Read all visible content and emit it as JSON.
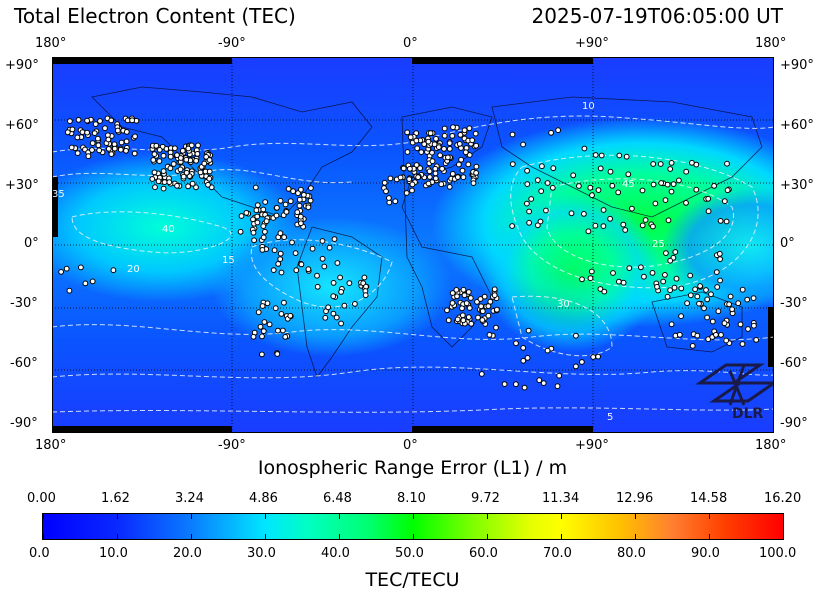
{
  "header": {
    "title_left": "Total Electron Content (TEC)",
    "title_right": "2025-07-19T06:05:00 UT"
  },
  "map": {
    "lon_ticks": [
      "180°",
      "-90°",
      "0°",
      "+90°",
      "180°"
    ],
    "lat_ticks": [
      "+90°",
      "+60°",
      "+30°",
      "0°",
      "-30°",
      "-60°",
      "-90°"
    ],
    "contour_labels": [
      "5",
      "10",
      "15",
      "20",
      "25",
      "30",
      "35",
      "40",
      "45"
    ],
    "x_axis_title": "Ionospheric Range Error (L1) / m",
    "logo_text": "DLR",
    "background_gradient": [
      "#1a3fff",
      "#0a60ff",
      "#00d8ff",
      "#00ff9a",
      "#00ff40"
    ]
  },
  "colorbar": {
    "top_ticks": [
      "0.00",
      "1.62",
      "3.24",
      "4.86",
      "6.48",
      "8.10",
      "9.72",
      "11.34",
      "12.96",
      "14.58",
      "16.20"
    ],
    "bottom_ticks": [
      "0.0",
      "10.0",
      "20.0",
      "30.0",
      "40.0",
      "50.0",
      "60.0",
      "70.0",
      "80.0",
      "90.0",
      "100.0"
    ],
    "title": "TEC/TECU",
    "range": [
      0,
      100
    ]
  }
}
